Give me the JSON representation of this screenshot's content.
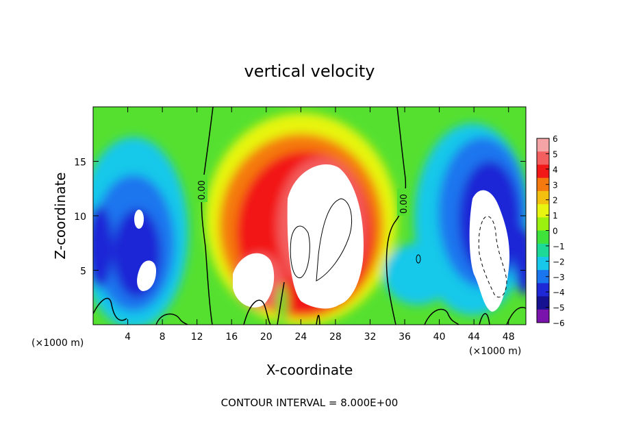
{
  "chart_data": {
    "type": "heatmap",
    "title": "vertical velocity",
    "xlabel": "X-coordinate",
    "ylabel": "Z-coordinate",
    "x_unit_label": "(×1000 m)",
    "footer": "CONTOUR INTERVAL = 8.000E+00",
    "xlim": [
      0,
      50
    ],
    "ylim": [
      0,
      20
    ],
    "x_ticks": [
      4,
      8,
      12,
      16,
      20,
      24,
      28,
      32,
      36,
      40,
      44,
      48
    ],
    "x_tick_labels": [
      "4",
      "8",
      "12",
      "16",
      "20",
      "24",
      "28",
      "32",
      "36",
      "40",
      "44",
      "48"
    ],
    "y_ticks": [
      5,
      10,
      15
    ],
    "y_tick_labels": [
      "5",
      "10",
      "15"
    ],
    "colorbar_ticks": [
      6,
      5,
      4,
      3,
      2,
      1,
      0,
      -1,
      -2,
      -3,
      -4,
      -5,
      -6
    ],
    "colorbar_tick_labels": [
      "6",
      "5",
      "4",
      "3",
      "2",
      "1",
      "0",
      "−1",
      "−2",
      "−3",
      "−4",
      "−5",
      "−6"
    ],
    "colorbar_colors": [
      "#f4a4a4",
      "#f35f5f",
      "#f21818",
      "#f47a10",
      "#f4c010",
      "#e7f510",
      "#9cf010",
      "#3fe23a",
      "#1cd998",
      "#18c8ea",
      "#1a76ee",
      "#1e28d6",
      "#161190",
      "#7a12ac"
    ],
    "contour_labels": [
      "0.00",
      "0.00"
    ],
    "grid": false,
    "legend": "colorbar-right",
    "features": [
      {
        "name": "left downdraft",
        "x_range": [
          0,
          11
        ],
        "z_range": [
          0.5,
          15
        ],
        "min_value": -6
      },
      {
        "name": "central updraft",
        "x_range": [
          15,
          33
        ],
        "z_range": [
          0.5,
          18
        ],
        "max_value": 6
      },
      {
        "name": "right downdraft",
        "x_range": [
          36,
          50
        ],
        "z_range": [
          0.5,
          18
        ],
        "min_value": -6
      }
    ]
  }
}
